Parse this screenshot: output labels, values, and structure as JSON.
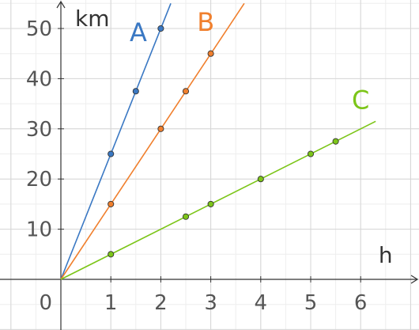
{
  "chart_data": {
    "type": "scatter",
    "title": "",
    "xlabel": "h",
    "ylabel": "km",
    "xlim": [
      -1.2,
      7.2
    ],
    "ylim": [
      -10,
      55
    ],
    "grid": true,
    "origin_label": "0",
    "x_ticks": [
      1,
      2,
      3,
      4,
      5,
      6
    ],
    "y_ticks": [
      10,
      20,
      30,
      40,
      50
    ],
    "series": [
      {
        "name": "A",
        "color": "#3a78c3",
        "line_end": {
          "x": 2.2,
          "y": 55
        },
        "points": [
          {
            "x": 1,
            "y": 25
          },
          {
            "x": 1.5,
            "y": 37.5
          },
          {
            "x": 2,
            "y": 50
          }
        ]
      },
      {
        "name": "B",
        "color": "#f07f2d",
        "line_end": {
          "x": 3.67,
          "y": 55
        },
        "points": [
          {
            "x": 1,
            "y": 15
          },
          {
            "x": 2,
            "y": 30
          },
          {
            "x": 2.5,
            "y": 37.5
          },
          {
            "x": 3,
            "y": 45
          }
        ]
      },
      {
        "name": "C",
        "color": "#7cc518",
        "line_end": {
          "x": 6.3,
          "y": 31.5
        },
        "points": [
          {
            "x": 1,
            "y": 5
          },
          {
            "x": 2.5,
            "y": 12.5
          },
          {
            "x": 3,
            "y": 15
          },
          {
            "x": 4,
            "y": 20
          },
          {
            "x": 5,
            "y": 25
          },
          {
            "x": 5.5,
            "y": 27.5
          }
        ]
      }
    ]
  }
}
